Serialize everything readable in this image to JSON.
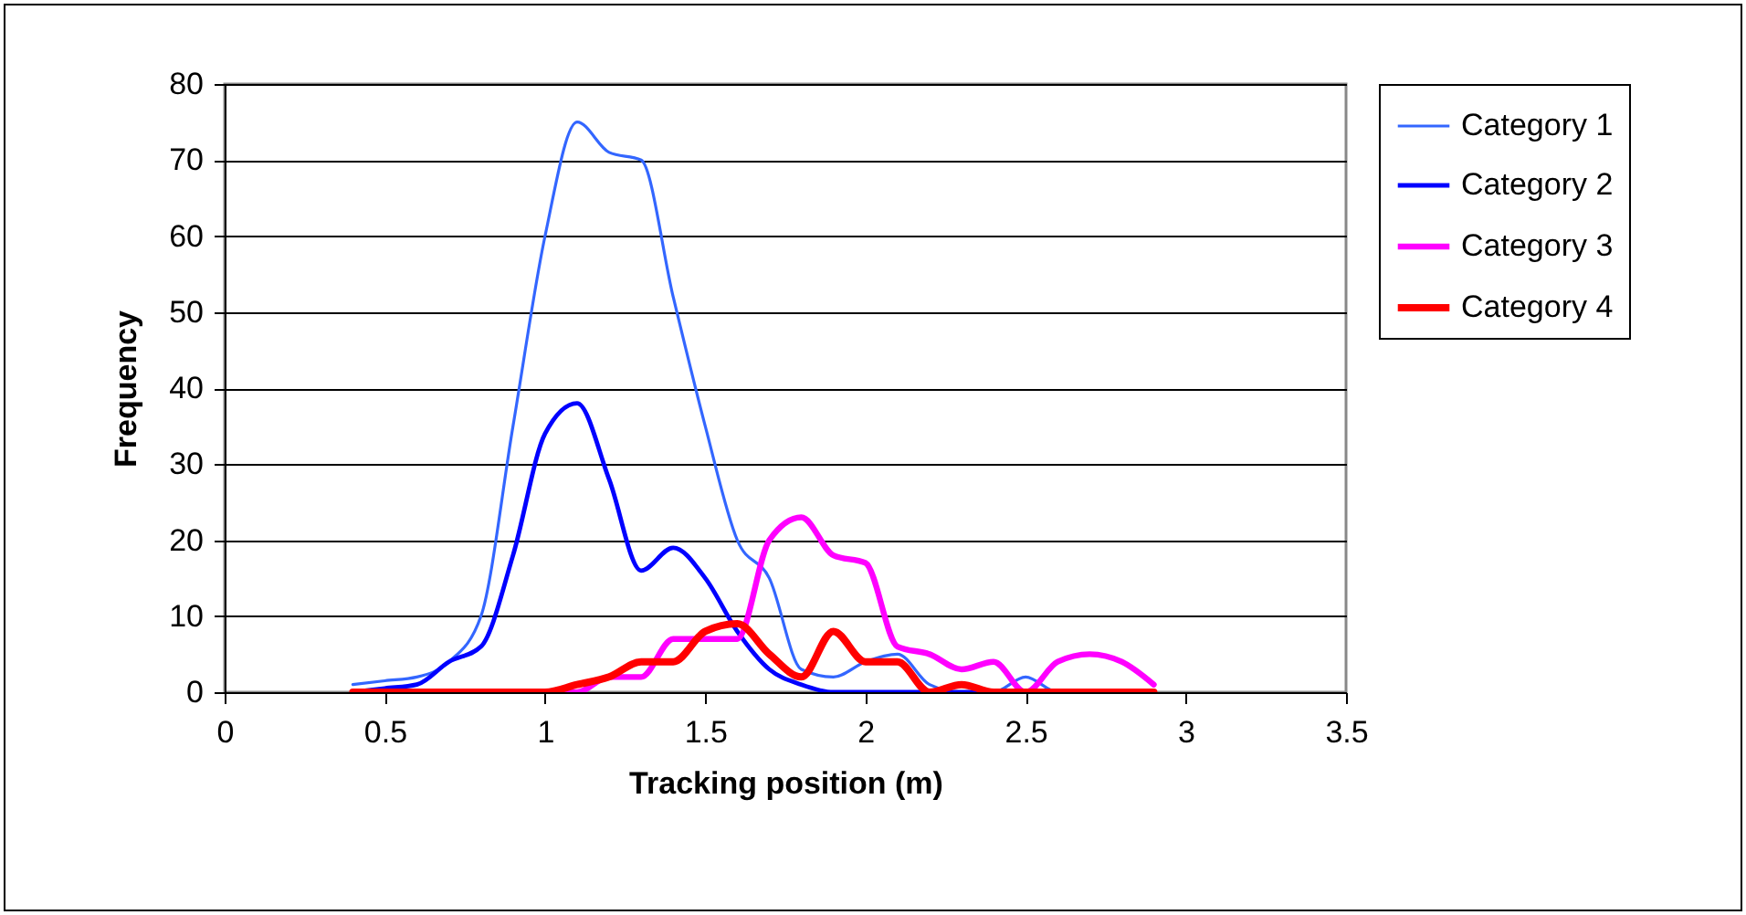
{
  "chart_data": {
    "type": "line",
    "xlabel": "Tracking position (m)",
    "ylabel": "Frequency",
    "x": [
      0.4,
      0.5,
      0.6,
      0.7,
      0.8,
      0.9,
      1.0,
      1.1,
      1.2,
      1.3,
      1.4,
      1.5,
      1.6,
      1.7,
      1.8,
      1.9,
      2.0,
      2.1,
      2.2,
      2.3,
      2.4,
      2.5,
      2.6,
      2.7,
      2.8,
      2.9
    ],
    "series": [
      {
        "name": "Category 1",
        "color": "#3366ff",
        "values": [
          1,
          1.5,
          2,
          4,
          10,
          35,
          60,
          75,
          71,
          70,
          52,
          35,
          20,
          15,
          3,
          2,
          4,
          5,
          1,
          0,
          0,
          2,
          0,
          0,
          null,
          null
        ]
      },
      {
        "name": "Category 2",
        "color": "#0000ff",
        "values": [
          0,
          0.5,
          1,
          4,
          6,
          18,
          34,
          38,
          28,
          16,
          19,
          15,
          8,
          3,
          1,
          0,
          0,
          0,
          0,
          0,
          0,
          0,
          0,
          0,
          null,
          null
        ]
      },
      {
        "name": "Category 3",
        "color": "#ff00ff",
        "values": [
          null,
          null,
          null,
          null,
          null,
          0,
          0,
          0,
          2,
          2,
          7,
          7,
          7,
          20,
          23,
          18,
          17,
          6,
          5,
          3,
          4,
          0,
          4,
          5,
          4,
          1
        ]
      },
      {
        "name": "Category 4",
        "color": "#ff0000",
        "values": [
          0,
          0,
          0,
          0,
          0,
          0,
          0,
          1,
          2,
          4,
          4,
          8,
          9,
          5,
          2,
          8,
          4,
          4,
          0,
          1,
          0,
          0,
          0,
          0,
          0,
          0
        ]
      }
    ],
    "xlim": [
      0,
      3.5
    ],
    "xticks": [
      0,
      0.5,
      1,
      1.5,
      2,
      2.5,
      3,
      3.5
    ],
    "ylim": [
      0,
      80
    ],
    "yticks": [
      0,
      10,
      20,
      30,
      40,
      50,
      60,
      70,
      80
    ],
    "grid": "y",
    "legend": "right",
    "marker": "none",
    "line_style": "solid"
  }
}
